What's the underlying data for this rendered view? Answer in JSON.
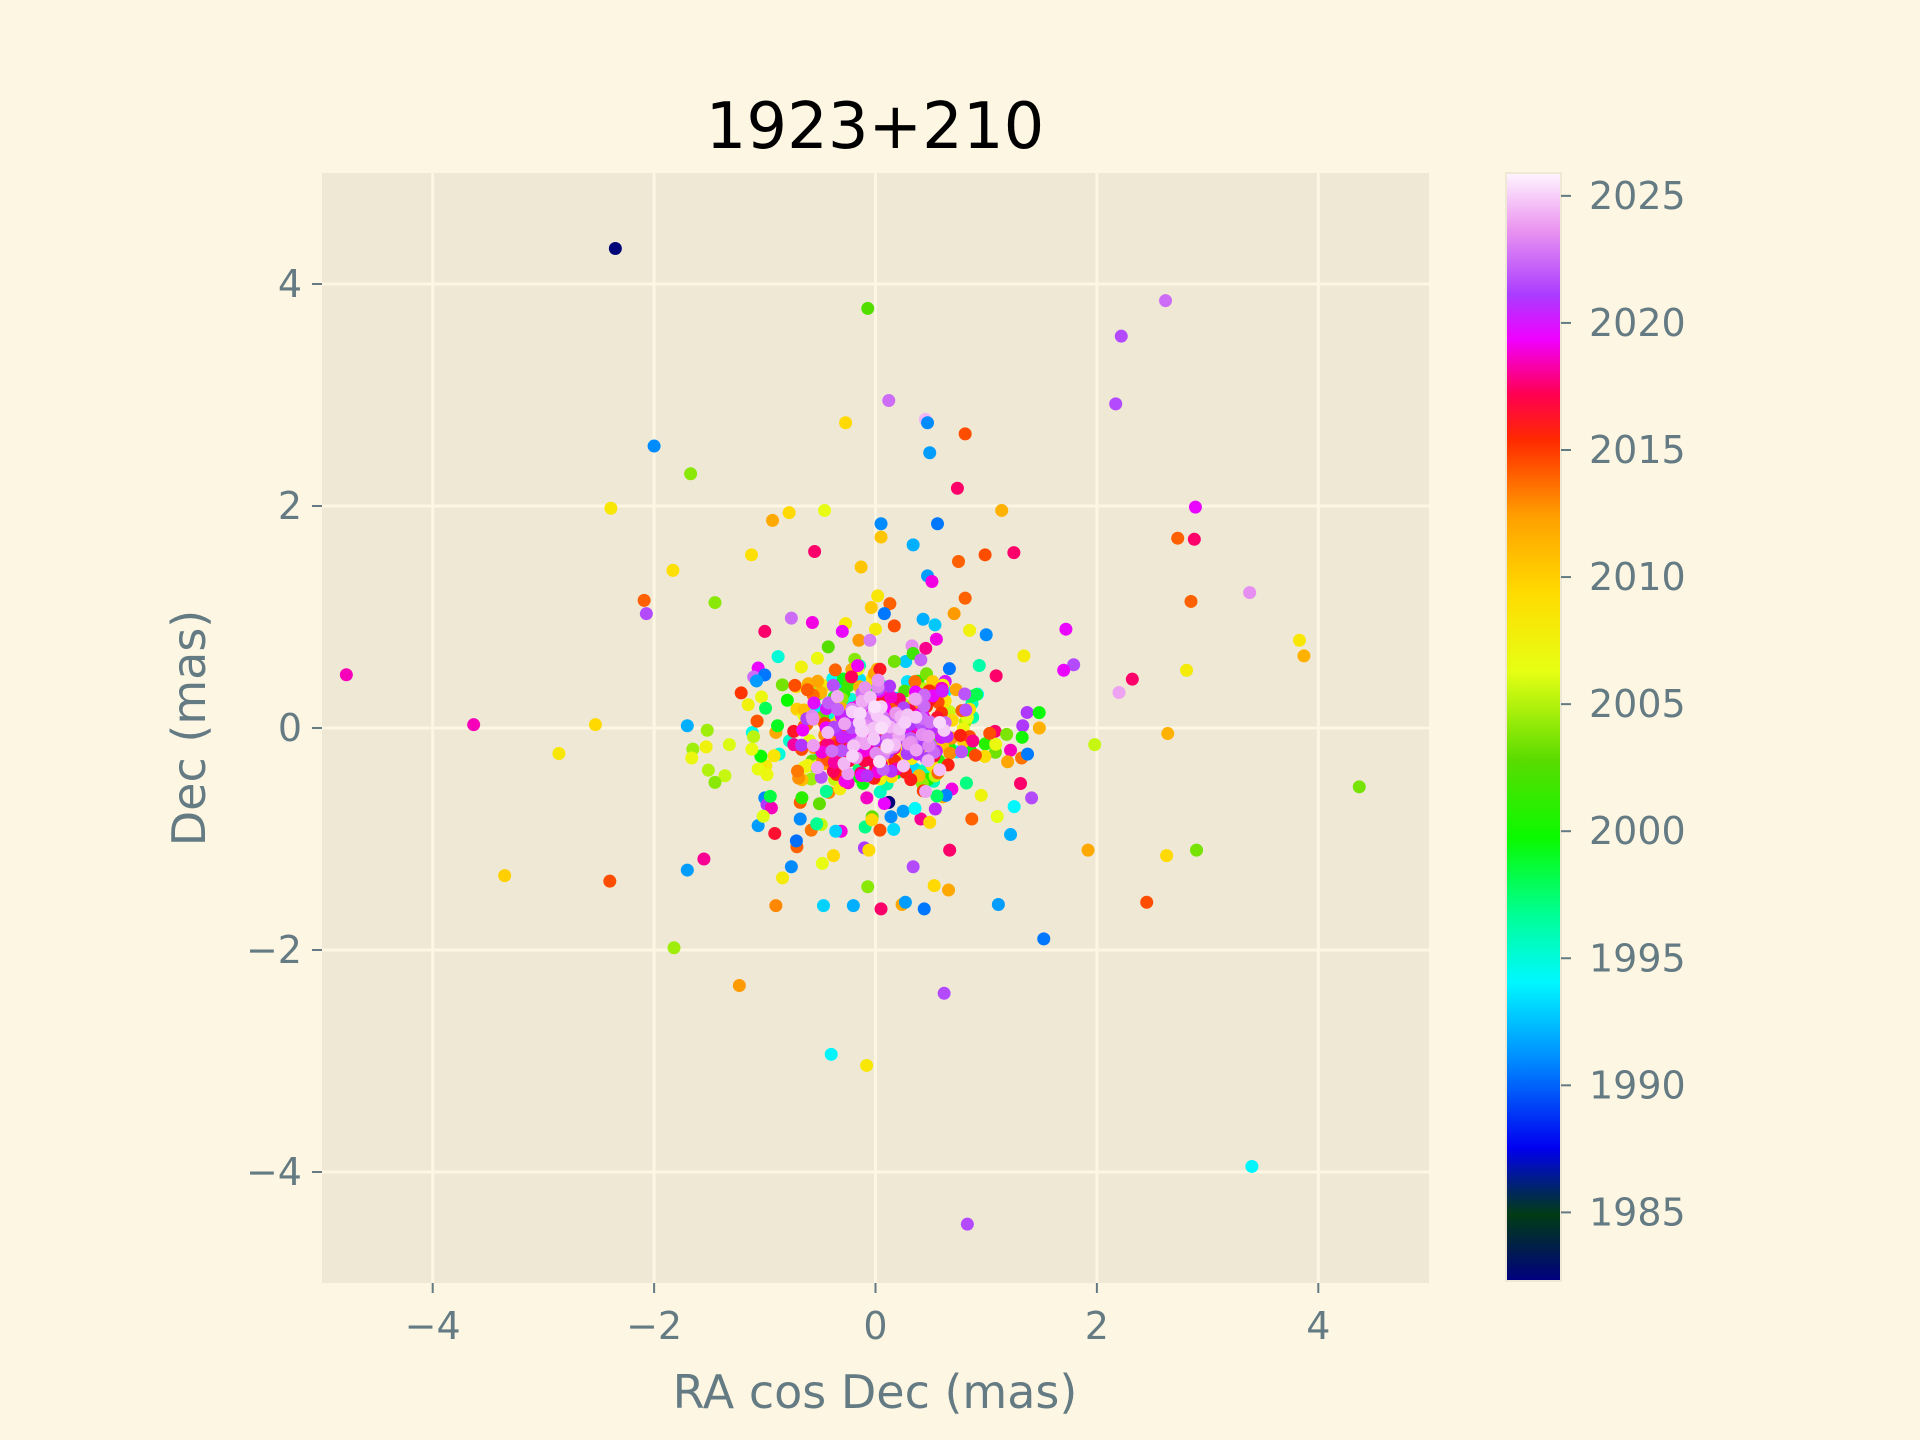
{
  "chart_data": {
    "type": "scatter",
    "title": "1923+210",
    "xlabel": "RA cos Dec (mas)",
    "ylabel": "Dec (mas)",
    "xlim": [
      -5,
      5
    ],
    "ylim": [
      -5,
      5
    ],
    "xticks": [
      -4,
      -2,
      0,
      2,
      4
    ],
    "xtick_labels": [
      "−4",
      "−2",
      "0",
      "2",
      "4"
    ],
    "yticks": [
      -4,
      -2,
      0,
      2,
      4
    ],
    "ytick_labels": [
      "−4",
      "−2",
      "0",
      "2",
      "4"
    ],
    "grid": true,
    "colorbar": {
      "label": "",
      "range": [
        1982.3,
        2025.9
      ],
      "ticks": [
        1985,
        1990,
        1995,
        2000,
        2005,
        2010,
        2015,
        2020,
        2025
      ],
      "tick_labels": [
        "1985",
        "1990",
        "1995",
        "2000",
        "2005",
        "2010",
        "2015",
        "2020",
        "2025"
      ]
    },
    "colors": {
      "figure_bg": "#fdf6e3",
      "axes_bg": "#eee8d5",
      "grid": "#fdf6e3",
      "tick_text": "#657b83"
    },
    "points": [
      {
        "x": -2.35,
        "y": 4.32,
        "epoch": 1982.5
      },
      {
        "x": -0.07,
        "y": 3.78,
        "epoch": 2002.5
      },
      {
        "x": 2.62,
        "y": 3.85,
        "epoch": 2022.5
      },
      {
        "x": 2.22,
        "y": 3.53,
        "epoch": 2021.5
      },
      {
        "x": 0.12,
        "y": 2.95,
        "epoch": 2022.5
      },
      {
        "x": 0.45,
        "y": 2.78,
        "epoch": 2024.5
      },
      {
        "x": 0.47,
        "y": 2.75,
        "epoch": 1991.0
      },
      {
        "x": 2.17,
        "y": 2.92,
        "epoch": 2021.5
      },
      {
        "x": -0.27,
        "y": 2.75,
        "epoch": 2009.5
      },
      {
        "x": 0.81,
        "y": 2.65,
        "epoch": 2014.5
      },
      {
        "x": 0.49,
        "y": 2.48,
        "epoch": 1991.5
      },
      {
        "x": -2.0,
        "y": 2.54,
        "epoch": 1991.0
      },
      {
        "x": -1.67,
        "y": 2.29,
        "epoch": 2004.0
      },
      {
        "x": 0.74,
        "y": 2.16,
        "epoch": 2017.5
      },
      {
        "x": 2.89,
        "y": 1.99,
        "epoch": 2019.5
      },
      {
        "x": -2.39,
        "y": 1.98,
        "epoch": 2008.5
      },
      {
        "x": -0.78,
        "y": 1.94,
        "epoch": 2009.5
      },
      {
        "x": -0.46,
        "y": 1.96,
        "epoch": 2006.5
      },
      {
        "x": 1.14,
        "y": 1.96,
        "epoch": 2011.5
      },
      {
        "x": -0.93,
        "y": 1.87,
        "epoch": 2012.0
      },
      {
        "x": 0.05,
        "y": 1.84,
        "epoch": 1991.0
      },
      {
        "x": 0.56,
        "y": 1.84,
        "epoch": 1990.5
      },
      {
        "x": 2.73,
        "y": 1.71,
        "epoch": 2014.0
      },
      {
        "x": 2.88,
        "y": 1.7,
        "epoch": 2017.5
      },
      {
        "x": 0.05,
        "y": 1.72,
        "epoch": 2010.5
      },
      {
        "x": 0.34,
        "y": 1.65,
        "epoch": 1992.0
      },
      {
        "x": -1.12,
        "y": 1.56,
        "epoch": 2009.0
      },
      {
        "x": -0.55,
        "y": 1.59,
        "epoch": 2017.5
      },
      {
        "x": 0.99,
        "y": 1.56,
        "epoch": 2014.5
      },
      {
        "x": 1.25,
        "y": 1.58,
        "epoch": 2017.5
      },
      {
        "x": 0.75,
        "y": 1.5,
        "epoch": 2014.0
      },
      {
        "x": -1.83,
        "y": 1.42,
        "epoch": 2009.0
      },
      {
        "x": -0.13,
        "y": 1.45,
        "epoch": 2010.5
      },
      {
        "x": 0.47,
        "y": 1.37,
        "epoch": 1991.5
      },
      {
        "x": 0.51,
        "y": 1.32,
        "epoch": 2019.0
      },
      {
        "x": 3.38,
        "y": 1.22,
        "epoch": 2023.5
      },
      {
        "x": 0.02,
        "y": 1.19,
        "epoch": 2008.5
      },
      {
        "x": -2.09,
        "y": 1.15,
        "epoch": 2014.0
      },
      {
        "x": -1.45,
        "y": 1.13,
        "epoch": 2004.0
      },
      {
        "x": 0.13,
        "y": 1.12,
        "epoch": 2014.0
      },
      {
        "x": 2.85,
        "y": 1.14,
        "epoch": 2014.0
      },
      {
        "x": 0.81,
        "y": 1.17,
        "epoch": 2014.0
      },
      {
        "x": -2.07,
        "y": 1.03,
        "epoch": 2021.5
      },
      {
        "x": 0.71,
        "y": 1.03,
        "epoch": 2012.5
      },
      {
        "x": 0.08,
        "y": 1.03,
        "epoch": 1990.5
      },
      {
        "x": -0.76,
        "y": 0.99,
        "epoch": 2022.5
      },
      {
        "x": 0.43,
        "y": 0.98,
        "epoch": 1992.0
      },
      {
        "x": -0.27,
        "y": 0.94,
        "epoch": 2008.5
      },
      {
        "x": -0.57,
        "y": 0.95,
        "epoch": 2019.0
      },
      {
        "x": -0.3,
        "y": 0.87,
        "epoch": 2019.5
      },
      {
        "x": 0.17,
        "y": 0.92,
        "epoch": 2014.5
      },
      {
        "x": 1.72,
        "y": 0.89,
        "epoch": 2019.5
      },
      {
        "x": 0.0,
        "y": 0.89,
        "epoch": 2008.0
      },
      {
        "x": 0.85,
        "y": 0.88,
        "epoch": 2007.5
      },
      {
        "x": -1.0,
        "y": 0.87,
        "epoch": 2017.5
      },
      {
        "x": 3.83,
        "y": 0.79,
        "epoch": 2008.5
      },
      {
        "x": 1.0,
        "y": 0.84,
        "epoch": 1991.0
      },
      {
        "x": -0.15,
        "y": 0.79,
        "epoch": 2012.5
      },
      {
        "x": 0.55,
        "y": 0.8,
        "epoch": 2019.0
      },
      {
        "x": -0.05,
        "y": 0.79,
        "epoch": 2023.0
      },
      {
        "x": 0.33,
        "y": 0.74,
        "epoch": 2023.5
      },
      {
        "x": 3.87,
        "y": 0.65,
        "epoch": 2011.5
      },
      {
        "x": 1.34,
        "y": 0.65,
        "epoch": 2008.0
      },
      {
        "x": -1.06,
        "y": 0.54,
        "epoch": 2019.5
      },
      {
        "x": 1.79,
        "y": 0.57,
        "epoch": 2021.5
      },
      {
        "x": 2.81,
        "y": 0.52,
        "epoch": 2008.0
      },
      {
        "x": -4.78,
        "y": 0.48,
        "epoch": 2018.5
      },
      {
        "x": -0.67,
        "y": 0.55,
        "epoch": 2007.5
      },
      {
        "x": -1.1,
        "y": 0.46,
        "epoch": 2022.5
      },
      {
        "x": 1.7,
        "y": 0.52,
        "epoch": 2019.5
      },
      {
        "x": 2.32,
        "y": 0.44,
        "epoch": 2017.5
      },
      {
        "x": 1.09,
        "y": 0.47,
        "epoch": 2017.5
      },
      {
        "x": 0.63,
        "y": 0.42,
        "epoch": 2020.0
      },
      {
        "x": -0.46,
        "y": 0.38,
        "epoch": 2008.0
      },
      {
        "x": 2.2,
        "y": 0.32,
        "epoch": 2024.0
      },
      {
        "x": -1.03,
        "y": 0.28,
        "epoch": 2007.0
      },
      {
        "x": -1.15,
        "y": 0.21,
        "epoch": 2007.5
      },
      {
        "x": 1.37,
        "y": 0.14,
        "epoch": 2021.0
      },
      {
        "x": -0.71,
        "y": 0.17,
        "epoch": 2010.0
      },
      {
        "x": -3.63,
        "y": 0.03,
        "epoch": 2018.5
      },
      {
        "x": -2.53,
        "y": 0.03,
        "epoch": 2009.5
      },
      {
        "x": -1.7,
        "y": 0.02,
        "epoch": 1992.0
      },
      {
        "x": -1.52,
        "y": -0.02,
        "epoch": 2004.5
      },
      {
        "x": 1.48,
        "y": 0.0,
        "epoch": 2011.5
      },
      {
        "x": 1.33,
        "y": 0.02,
        "epoch": 2021.0
      },
      {
        "x": 1.08,
        "y": -0.03,
        "epoch": 2017.5
      },
      {
        "x": -0.9,
        "y": -0.04,
        "epoch": 2012.0
      },
      {
        "x": 2.64,
        "y": -0.05,
        "epoch": 2011.5
      },
      {
        "x": 1.98,
        "y": -0.15,
        "epoch": 2005.5
      },
      {
        "x": -1.65,
        "y": -0.19,
        "epoch": 2004.5
      },
      {
        "x": -1.32,
        "y": -0.15,
        "epoch": 2006.0
      },
      {
        "x": -1.53,
        "y": -0.17,
        "epoch": 2007.5
      },
      {
        "x": -2.86,
        "y": -0.23,
        "epoch": 2008.5
      },
      {
        "x": 1.22,
        "y": -0.2,
        "epoch": 2018.5
      },
      {
        "x": -1.66,
        "y": -0.27,
        "epoch": 2007.0
      },
      {
        "x": 1.32,
        "y": -0.27,
        "epoch": 2013.5
      },
      {
        "x": -0.99,
        "y": -0.34,
        "epoch": 2008.0
      },
      {
        "x": -1.06,
        "y": -0.37,
        "epoch": 2006.5
      },
      {
        "x": -1.51,
        "y": -0.38,
        "epoch": 2005.0
      },
      {
        "x": -1.36,
        "y": -0.43,
        "epoch": 2005.5
      },
      {
        "x": -0.98,
        "y": -0.42,
        "epoch": 2007.0
      },
      {
        "x": -0.58,
        "y": -0.46,
        "epoch": 2004.5
      },
      {
        "x": -1.45,
        "y": -0.49,
        "epoch": 2004.0
      },
      {
        "x": 1.31,
        "y": -0.5,
        "epoch": 2017.5
      },
      {
        "x": 4.37,
        "y": -0.53,
        "epoch": 2003.5
      },
      {
        "x": -1.0,
        "y": -0.63,
        "epoch": 1991.0
      },
      {
        "x": 0.69,
        "y": -0.55,
        "epoch": 2019.0
      },
      {
        "x": -0.42,
        "y": -0.58,
        "epoch": 2013.0
      },
      {
        "x": 0.61,
        "y": -0.62,
        "epoch": 2011.5
      },
      {
        "x": 1.41,
        "y": -0.63,
        "epoch": 2021.5
      },
      {
        "x": -0.98,
        "y": -0.69,
        "epoch": 2021.0
      },
      {
        "x": -0.68,
        "y": -0.67,
        "epoch": 2014.0
      },
      {
        "x": -0.94,
        "y": -0.72,
        "epoch": 2018.5
      },
      {
        "x": 0.12,
        "y": -0.67,
        "epoch": 1982.5
      },
      {
        "x": 0.08,
        "y": -0.68,
        "epoch": 2019.5
      },
      {
        "x": -0.03,
        "y": -0.8,
        "epoch": 2003.0
      },
      {
        "x": 0.25,
        "y": -0.75,
        "epoch": 1991.5
      },
      {
        "x": 0.14,
        "y": -0.8,
        "epoch": 1991.0
      },
      {
        "x": 0.54,
        "y": -0.73,
        "epoch": 2020.5
      },
      {
        "x": 0.41,
        "y": -0.82,
        "epoch": 2018.0
      },
      {
        "x": 0.87,
        "y": -0.82,
        "epoch": 2014.0
      },
      {
        "x": -0.68,
        "y": -0.82,
        "epoch": 1991.0
      },
      {
        "x": 0.49,
        "y": -0.85,
        "epoch": 2009.5
      },
      {
        "x": -0.49,
        "y": -0.87,
        "epoch": 2005.5
      },
      {
        "x": -0.58,
        "y": -0.92,
        "epoch": 2013.5
      },
      {
        "x": -1.06,
        "y": -0.88,
        "epoch": 1991.5
      },
      {
        "x": 0.04,
        "y": -0.92,
        "epoch": 2014.5
      },
      {
        "x": -0.31,
        "y": -0.93,
        "epoch": 2019.0
      },
      {
        "x": -0.36,
        "y": -0.93,
        "epoch": 1993.0
      },
      {
        "x": -0.91,
        "y": -0.95,
        "epoch": 2016.5
      },
      {
        "x": 1.22,
        "y": -0.96,
        "epoch": 1992.0
      },
      {
        "x": -0.71,
        "y": -1.07,
        "epoch": 2014.0
      },
      {
        "x": -0.1,
        "y": -1.08,
        "epoch": 2021.0
      },
      {
        "x": -0.06,
        "y": -1.1,
        "epoch": 2009.5
      },
      {
        "x": 0.67,
        "y": -1.1,
        "epoch": 2017.5
      },
      {
        "x": 1.92,
        "y": -1.1,
        "epoch": 2012.0
      },
      {
        "x": 2.9,
        "y": -1.1,
        "epoch": 2003.5
      },
      {
        "x": -0.38,
        "y": -1.15,
        "epoch": 2009.5
      },
      {
        "x": -1.55,
        "y": -1.18,
        "epoch": 2018.0
      },
      {
        "x": 2.63,
        "y": -1.15,
        "epoch": 2009.5
      },
      {
        "x": -0.48,
        "y": -1.22,
        "epoch": 2006.5
      },
      {
        "x": -3.35,
        "y": -1.33,
        "epoch": 2010.0
      },
      {
        "x": -1.7,
        "y": -1.28,
        "epoch": 1991.5
      },
      {
        "x": -0.76,
        "y": -1.25,
        "epoch": 1991.0
      },
      {
        "x": 0.34,
        "y": -1.25,
        "epoch": 2021.5
      },
      {
        "x": -0.84,
        "y": -1.35,
        "epoch": 2008.0
      },
      {
        "x": -2.4,
        "y": -1.38,
        "epoch": 2014.5
      },
      {
        "x": 0.53,
        "y": -1.42,
        "epoch": 2009.5
      },
      {
        "x": -0.07,
        "y": -1.43,
        "epoch": 2004.0
      },
      {
        "x": 0.66,
        "y": -1.46,
        "epoch": 2012.0
      },
      {
        "x": 2.45,
        "y": -1.57,
        "epoch": 2014.5
      },
      {
        "x": -0.9,
        "y": -1.6,
        "epoch": 2013.0
      },
      {
        "x": -0.47,
        "y": -1.6,
        "epoch": 1993.0
      },
      {
        "x": -0.2,
        "y": -1.6,
        "epoch": 1992.0
      },
      {
        "x": 0.24,
        "y": -1.59,
        "epoch": 2012.0
      },
      {
        "x": 0.27,
        "y": -1.57,
        "epoch": 1991.5
      },
      {
        "x": 1.11,
        "y": -1.59,
        "epoch": 1991.5
      },
      {
        "x": 0.05,
        "y": -1.63,
        "epoch": 2017.5
      },
      {
        "x": 0.44,
        "y": -1.63,
        "epoch": 1990.5
      },
      {
        "x": 1.52,
        "y": -1.9,
        "epoch": 1990.5
      },
      {
        "x": -1.82,
        "y": -1.98,
        "epoch": 2004.5
      },
      {
        "x": -1.23,
        "y": -2.32,
        "epoch": 2012.5
      },
      {
        "x": 0.62,
        "y": -2.39,
        "epoch": 2021.5
      },
      {
        "x": -0.4,
        "y": -2.94,
        "epoch": 1994.0
      },
      {
        "x": -0.08,
        "y": -3.04,
        "epoch": 2008.5
      },
      {
        "x": 3.4,
        "y": -3.95,
        "epoch": 1994.0
      },
      {
        "x": 0.83,
        "y": -4.47,
        "epoch": 2021.5
      }
    ],
    "cluster": {
      "note": "dense central group of ~600 points, x mostly in [-1.2, 1.3] mas, y mostly in [-0.9, 0.9] mas, epochs 1990–2025",
      "count": 600,
      "x_center": 0.05,
      "y_center": 0.0,
      "x_spread": 0.45,
      "y_spread": 0.3
    }
  }
}
